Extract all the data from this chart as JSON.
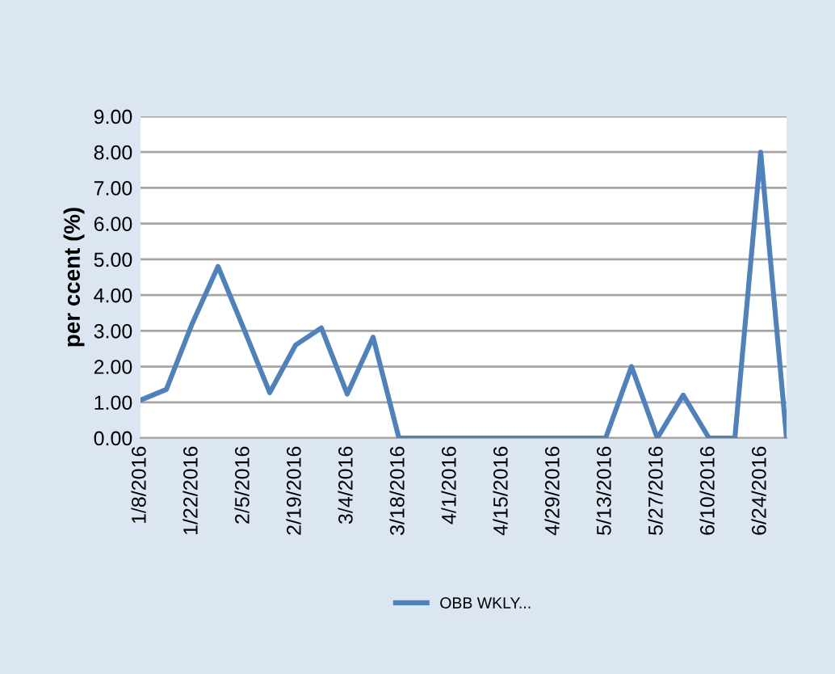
{
  "chart_data": {
    "type": "line",
    "ylabel": "per ccent (%)",
    "categories": [
      "1/8/2016",
      null,
      "1/22/2016",
      null,
      "2/5/2016",
      null,
      "2/19/2016",
      null,
      "3/4/2016",
      null,
      "3/18/2016",
      null,
      "4/1/2016",
      null,
      "4/15/2016",
      null,
      "4/29/2016",
      null,
      "5/13/2016",
      null,
      "5/27/2016",
      null,
      "6/10/2016",
      null,
      "6/24/2016",
      null
    ],
    "series": [
      {
        "name": "OBB WKLY...",
        "color": "#4f81bd",
        "values": [
          1.06,
          1.36,
          3.2,
          4.8,
          3.05,
          1.27,
          2.6,
          3.08,
          1.23,
          2.82,
          0,
          0,
          0,
          0,
          0,
          0,
          0,
          0,
          0,
          2.0,
          0,
          1.2,
          0,
          0,
          8.0,
          0
        ]
      }
    ],
    "ylim": [
      0,
      9
    ],
    "yticks": [
      {
        "value": 0,
        "label": "0.00"
      },
      {
        "value": 1,
        "label": "1.00"
      },
      {
        "value": 2,
        "label": "2.00"
      },
      {
        "value": 3,
        "label": "3.00"
      },
      {
        "value": 4,
        "label": "4.00"
      },
      {
        "value": 5,
        "label": "5.00"
      },
      {
        "value": 6,
        "label": "6.00"
      },
      {
        "value": 7,
        "label": "7.00"
      },
      {
        "value": 8,
        "label": "8.00"
      },
      {
        "value": 9,
        "label": "9.00"
      }
    ],
    "grid": "y",
    "legend": "bottom",
    "marker": "none",
    "line_style": "solid"
  }
}
